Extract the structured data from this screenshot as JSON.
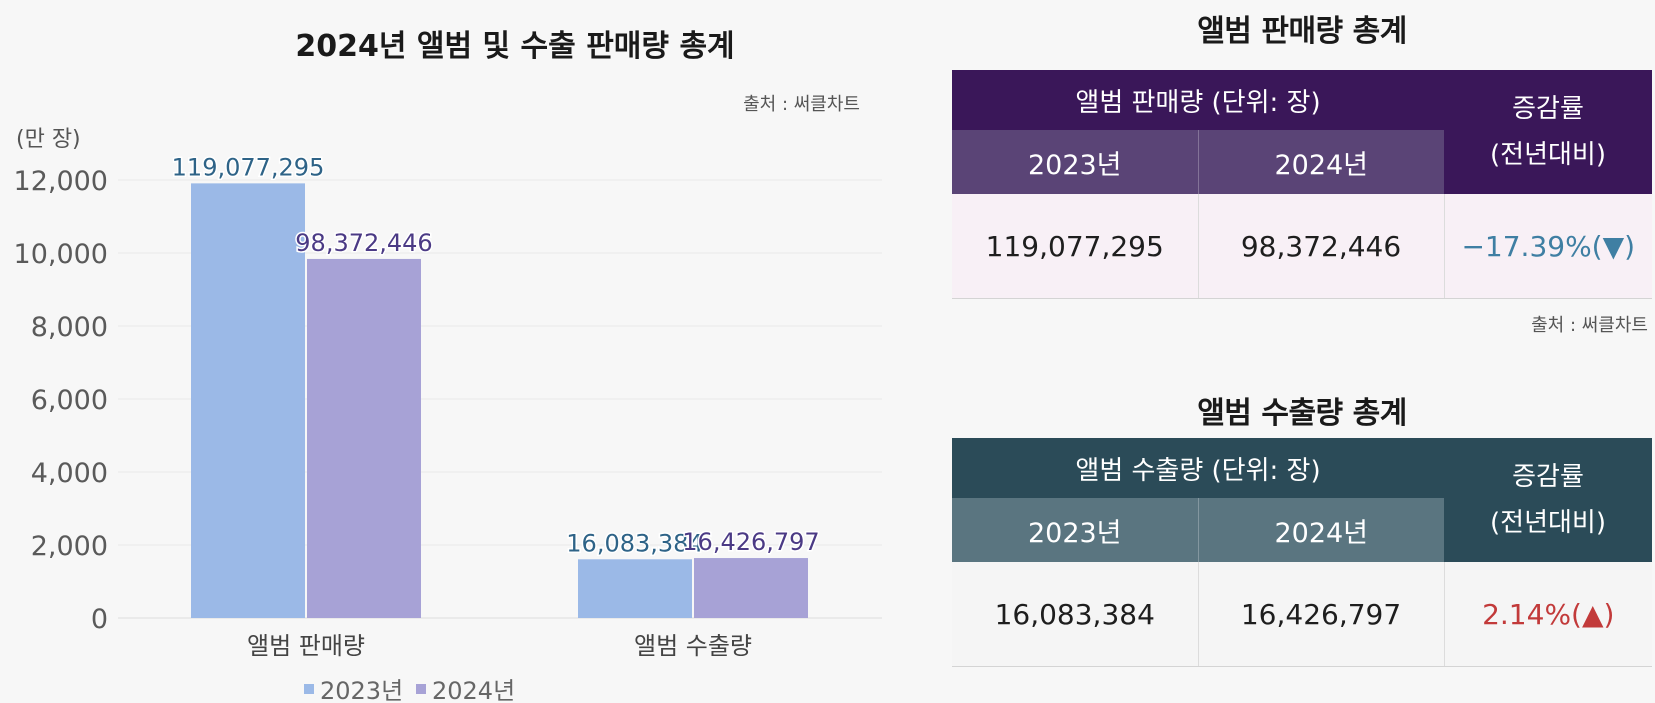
{
  "chart_data": {
    "type": "bar",
    "title": "2024년 앨범 및 수출 판매량 총계",
    "source": "출처 : 써클차트",
    "ylabel": "(만 장)",
    "ylim": [
      0,
      12000
    ],
    "yticks": [
      0,
      2000,
      4000,
      6000,
      8000,
      10000,
      12000
    ],
    "ytick_labels": [
      "0",
      "2,000",
      "4,000",
      "6,000",
      "8,000",
      "10,000",
      "12,000"
    ],
    "categories": [
      "앨범 판매량",
      "앨범 수출량"
    ],
    "series": [
      {
        "name": "2023년",
        "color": "#9bb9e7",
        "label_color": "#2e6387",
        "values": [
          11907.7295,
          1608.3384
        ],
        "labels": [
          "119,077,295",
          "16,083,384"
        ]
      },
      {
        "name": "2024년",
        "color": "#a7a2d6",
        "label_color": "#4b3a85",
        "values": [
          9837.2446,
          1642.6797
        ],
        "labels": [
          "98,372,446",
          "16,426,797"
        ]
      }
    ],
    "grid": true,
    "legend_position": "bottom"
  },
  "tables": [
    {
      "title": "앨범 판매량 총계",
      "header_main": "앨범 판매량 (단위: 장)",
      "rate_header_line1": "증감률",
      "rate_header_line2": "(전년대비)",
      "year1": "2023년",
      "year2": "2024년",
      "value1": "119,077,295",
      "value2": "98,372,446",
      "rate": "−17.39%(▼)",
      "rate_color": "#3f7fa3",
      "source": "출처 : 써클차트",
      "colors": {
        "main": "#3a1759",
        "sub": "#5a4476",
        "body": "#f8f0f6"
      }
    },
    {
      "title": "앨범 수출량 총계",
      "header_main": "앨범 수출량 (단위: 장)",
      "rate_header_line1": "증감률",
      "rate_header_line2": "(전년대비)",
      "year1": "2023년",
      "year2": "2024년",
      "value1": "16,083,384",
      "value2": "16,426,797",
      "rate": "2.14%(▲)",
      "rate_color": "#c23a3a",
      "colors": {
        "main": "#2b4b58",
        "sub": "#5a7580",
        "body": "#f5f5f5"
      }
    }
  ]
}
